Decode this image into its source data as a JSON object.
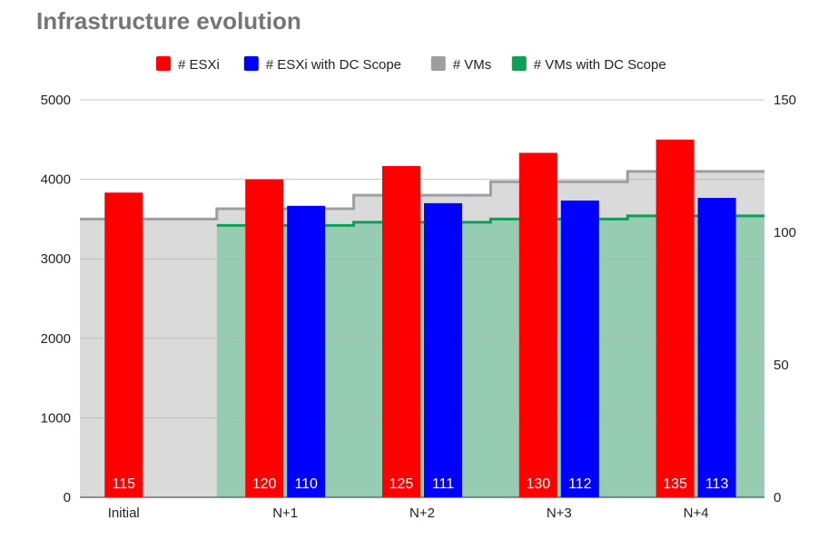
{
  "chart_data": {
    "type": "bar",
    "title": "Infrastructure evolution",
    "categories": [
      "Initial",
      "N+1",
      "N+2",
      "N+3",
      "N+4"
    ],
    "series": [
      {
        "name": "# ESXi",
        "kind": "bar",
        "axis": "right",
        "color": "#ff0000",
        "values": [
          115,
          120,
          125,
          130,
          135
        ]
      },
      {
        "name": "# ESXi with DC Scope",
        "kind": "bar",
        "axis": "right",
        "color": "#0000ff",
        "values": [
          null,
          110,
          111,
          112,
          113
        ]
      },
      {
        "name": "# VMs",
        "kind": "stepped-area",
        "axis": "left",
        "color": "#999999",
        "values": [
          3500,
          3630,
          3800,
          3970,
          4100
        ]
      },
      {
        "name": "# VMs with DC Scope",
        "kind": "stepped-area",
        "axis": "left",
        "color": "#0f9d58",
        "values": [
          null,
          3420,
          3460,
          3500,
          3540
        ]
      }
    ],
    "left_axis": {
      "range": [
        0,
        5000
      ],
      "ticks": [
        "0",
        "1000",
        "2000",
        "3000",
        "4000",
        "5000"
      ]
    },
    "right_axis": {
      "range": [
        0,
        150
      ],
      "ticks": [
        "0",
        "50",
        "100",
        "150"
      ]
    },
    "legend": "top",
    "grid": true,
    "data_labels": [
      "115",
      "120",
      "110",
      "125",
      "111",
      "130",
      "112",
      "135",
      "113"
    ]
  }
}
